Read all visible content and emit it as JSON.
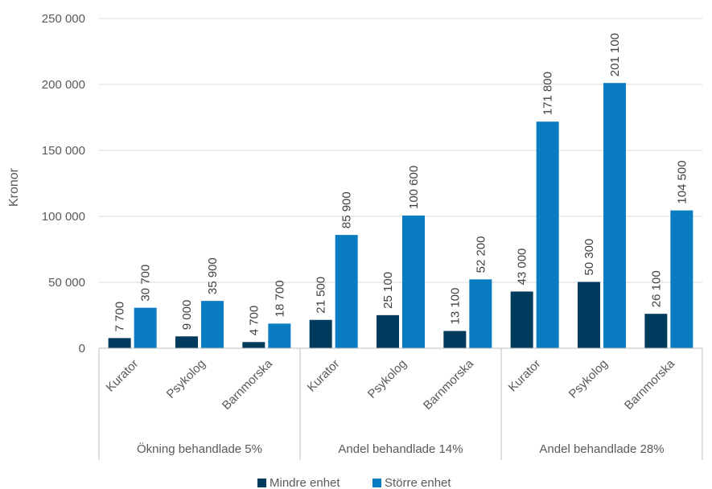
{
  "chart_data": {
    "type": "bar",
    "ylabel": "Kronor",
    "ylim": [
      0,
      250000
    ],
    "yticks": [
      0,
      50000,
      100000,
      150000,
      200000,
      250000
    ],
    "ytick_labels": [
      "0",
      "50 000",
      "100 000",
      "150 000",
      "200 000",
      "250 000"
    ],
    "groups": [
      {
        "label": "Ökning behandlade 5%",
        "categories": [
          "Kurator",
          "Psykolog",
          "Barnmorska"
        ]
      },
      {
        "label": "Andel behandlade 14%",
        "categories": [
          "Kurator",
          "Psykolog",
          "Barnmorska"
        ]
      },
      {
        "label": "Andel behandlade 28%",
        "categories": [
          "Kurator",
          "Psykolog",
          "Barnmorska"
        ]
      }
    ],
    "series": [
      {
        "name": "Mindre enhet",
        "color": "#003a5c",
        "values": [
          7700,
          9000,
          4700,
          21500,
          25100,
          13100,
          43000,
          50300,
          26100
        ],
        "labels": [
          "7 700",
          "9 000",
          "4 700",
          "21 500",
          "25 100",
          "13 100",
          "43 000",
          "50 300",
          "26 100"
        ]
      },
      {
        "name": "Större enhet",
        "color": "#0a7cc1",
        "values": [
          30700,
          35900,
          18700,
          85900,
          100600,
          52200,
          171800,
          201100,
          104500
        ],
        "labels": [
          "30 700",
          "35 900",
          "18 700",
          "85 900",
          "100 600",
          "52 200",
          "171 800",
          "201 100",
          "104 500"
        ]
      }
    ],
    "grid": true,
    "legend_position": "bottom"
  }
}
